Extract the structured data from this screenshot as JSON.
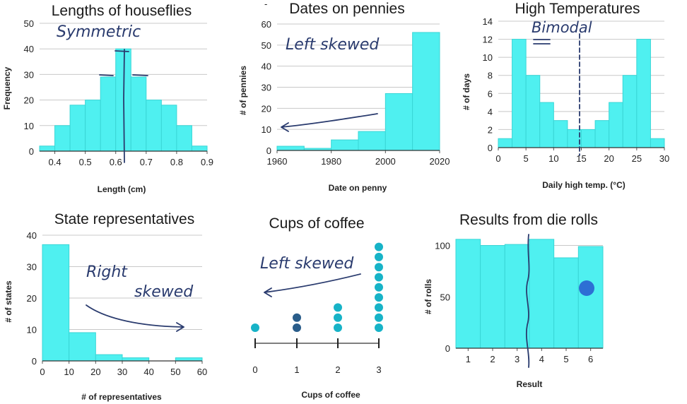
{
  "chart_data": [
    {
      "id": "houseflies",
      "type": "bar",
      "title": "Lengths of houseflies",
      "xlabel": "Length (cm)",
      "ylabel": "Frequency",
      "bin_edges": [
        0.35,
        0.4,
        0.45,
        0.5,
        0.55,
        0.6,
        0.65,
        0.7,
        0.75,
        0.8,
        0.85,
        0.9
      ],
      "values": [
        2,
        10,
        18,
        20,
        29,
        40,
        29,
        20,
        18,
        10,
        2
      ],
      "xlim": [
        0.35,
        0.9
      ],
      "ylim": [
        0,
        50
      ],
      "xticks": [
        "0.4",
        "0.5",
        "0.6",
        "0.7",
        "0.8",
        "0.9"
      ],
      "yticks": [
        "0",
        "10",
        "20",
        "30",
        "40",
        "50"
      ],
      "grid": true,
      "annotations": [
        {
          "text": "Symmetric"
        }
      ]
    },
    {
      "id": "pennies",
      "type": "bar",
      "title": "Dates on pennies",
      "xlabel": "Date on penny",
      "ylabel": "# of pennies",
      "bin_edges": [
        1960,
        1970,
        1980,
        1990,
        2000,
        2010,
        2020
      ],
      "values": [
        2,
        1,
        5,
        9,
        27,
        56
      ],
      "xlim": [
        1960,
        2020
      ],
      "ylim": [
        0,
        60
      ],
      "xticks": [
        "1960",
        "1980",
        "2000",
        "2020"
      ],
      "yticks": [
        "0",
        "10",
        "20",
        "30",
        "40",
        "50",
        "60"
      ],
      "grid": true,
      "annotations": [
        {
          "text": "Left skewed"
        }
      ]
    },
    {
      "id": "temperatures",
      "type": "bar",
      "title": "High Temperatures",
      "xlabel": "Daily high temp. (°C)",
      "ylabel": "# of days",
      "bin_edges": [
        0,
        2.5,
        5,
        7.5,
        10,
        12.5,
        15,
        17.5,
        20,
        22.5,
        25,
        27.5,
        30
      ],
      "values": [
        1,
        12,
        8,
        5,
        3,
        2,
        2,
        3,
        5,
        8,
        12,
        1
      ],
      "xlim": [
        0,
        30
      ],
      "ylim": [
        0,
        14
      ],
      "xticks": [
        "0",
        "5",
        "10",
        "15",
        "20",
        "25",
        "30"
      ],
      "yticks": [
        "0",
        "2",
        "4",
        "6",
        "8",
        "10",
        "12",
        "14"
      ],
      "grid": true,
      "annotations": [
        {
          "text": "Bimodal"
        }
      ]
    },
    {
      "id": "representatives",
      "type": "bar",
      "title": "State representatives",
      "xlabel": "# of representatives",
      "ylabel": "# of states",
      "bin_edges": [
        0,
        10,
        20,
        30,
        40,
        50,
        60
      ],
      "values": [
        37,
        9,
        2,
        1,
        0,
        1
      ],
      "xlim": [
        0,
        60
      ],
      "ylim": [
        0,
        40
      ],
      "xticks": [
        "0",
        "10",
        "20",
        "30",
        "40",
        "50",
        "60"
      ],
      "yticks": [
        "0",
        "10",
        "20",
        "30",
        "40"
      ],
      "grid": true,
      "annotations": [
        {
          "text": "Right"
        },
        {
          "text": "skewed"
        }
      ]
    },
    {
      "id": "coffee",
      "type": "scatter",
      "subtype": "dot_plot",
      "title": "Cups of coffee",
      "xlabel": "Cups of coffee",
      "ylabel": "",
      "categories": [
        "0",
        "1",
        "2",
        "3"
      ],
      "values": [
        1,
        2,
        3,
        9
      ],
      "grid": false,
      "annotations": [
        {
          "text": "Left skewed"
        }
      ]
    },
    {
      "id": "die",
      "type": "bar",
      "title": "Results from die rolls",
      "xlabel": "Result",
      "ylabel": "# of rolls",
      "categories": [
        "1",
        "2",
        "3",
        "4",
        "5",
        "6"
      ],
      "values": [
        106,
        100,
        101,
        106,
        88,
        99
      ],
      "ylim": [
        0,
        110
      ],
      "yticks": [
        "0",
        "50",
        "100"
      ],
      "grid": true,
      "annotations": []
    }
  ],
  "page": {
    "top_mark": "-"
  },
  "colors": {
    "bar_fill": "#4ff0f0",
    "dot_fill": "#17b3c7",
    "ink": "#2a3b6e"
  }
}
